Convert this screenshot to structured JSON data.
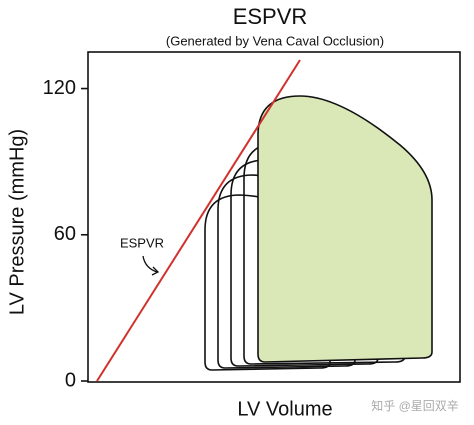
{
  "chart_data": {
    "type": "pv-loop",
    "title": "ESPVR",
    "subtitle": "(Generated by Vena Caval Occlusion)",
    "x_label": "LV Volume",
    "y_label": "LV Pressure (mmHg)",
    "annotation": "ESPVR",
    "line_color": "#d0312d",
    "fill_color": "#d9e8b6",
    "ylim": [
      0,
      135
    ],
    "yticks": [
      0,
      60,
      120
    ],
    "watermark": "知乎 @星回双辛"
  }
}
